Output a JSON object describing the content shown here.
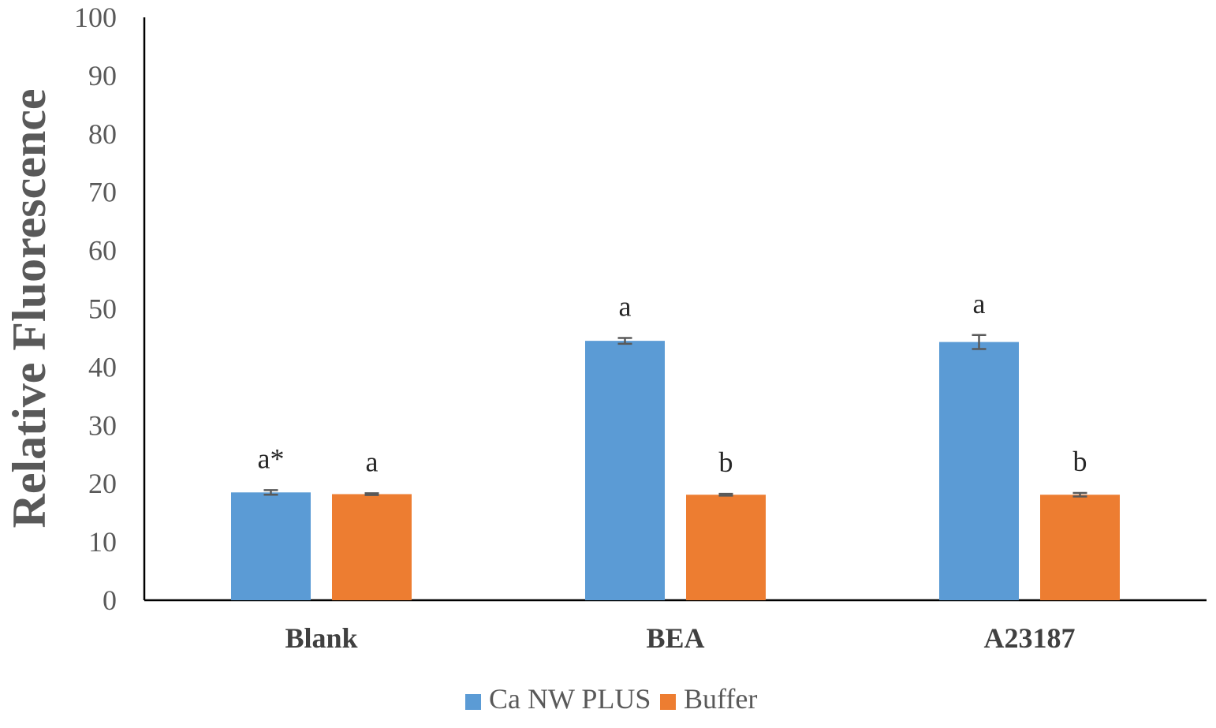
{
  "chart_data": {
    "type": "bar",
    "ylabel": "Relative Fluorescence",
    "xlabel": "",
    "ylim": [
      0,
      100
    ],
    "yticks": [
      0,
      10,
      20,
      30,
      40,
      50,
      60,
      70,
      80,
      90,
      100
    ],
    "grid": false,
    "legend_position": "bottom",
    "categories": [
      "Blank",
      "BEA",
      "A23187"
    ],
    "series": [
      {
        "name": "Ca NW PLUS",
        "color": "#5B9BD5",
        "values": [
          18.5,
          44.5,
          44.3
        ],
        "errors": [
          0.4,
          0.5,
          1.2
        ],
        "annotations": [
          "a*",
          "a",
          "a"
        ]
      },
      {
        "name": "Buffer",
        "color": "#ED7D31",
        "values": [
          18.2,
          18.1,
          18.1
        ],
        "errors": [
          0.15,
          0.15,
          0.3
        ],
        "annotations": [
          "a",
          "b",
          "b"
        ]
      }
    ]
  }
}
